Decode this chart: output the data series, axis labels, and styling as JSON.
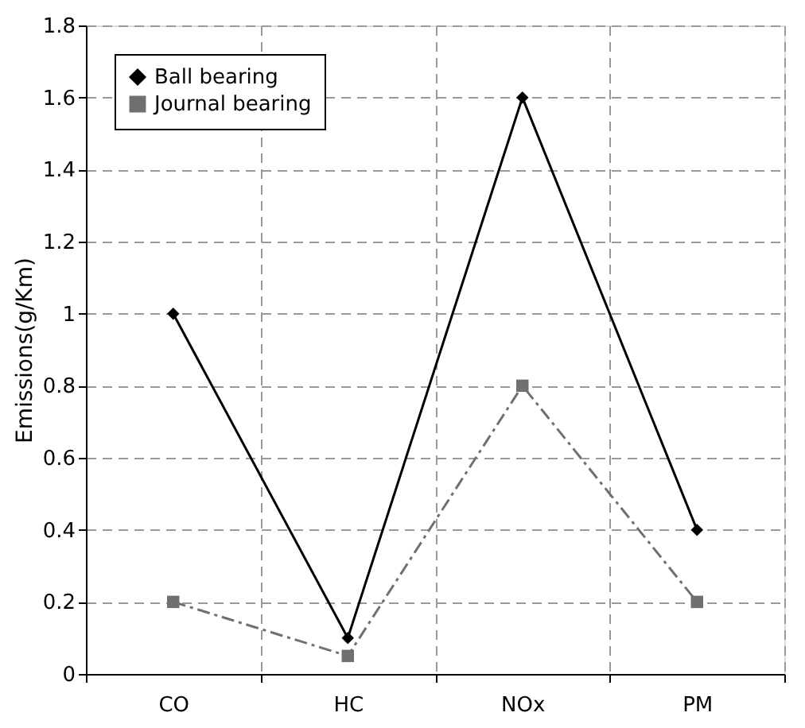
{
  "chart_data": {
    "type": "line",
    "ylabel": "Emissions(g/Km)",
    "categories": [
      "CO",
      "HC",
      "NOx",
      "PM"
    ],
    "series": [
      {
        "name": "Ball bearing",
        "color": "#000000",
        "values": [
          1.0,
          0.1,
          1.6,
          0.4
        ],
        "marker": "diamond",
        "line_style": "solid"
      },
      {
        "name": "Journal bearing",
        "color": "#707070",
        "values": [
          0.2,
          0.05,
          0.8,
          0.2
        ],
        "marker": "square",
        "line_style": "dashed"
      }
    ],
    "ylim": [
      0,
      1.8
    ],
    "yticks": [
      0,
      0.2,
      0.4,
      0.6,
      0.8,
      1,
      1.2,
      1.4,
      1.6,
      1.8
    ],
    "grid": true,
    "legend": "top left"
  }
}
